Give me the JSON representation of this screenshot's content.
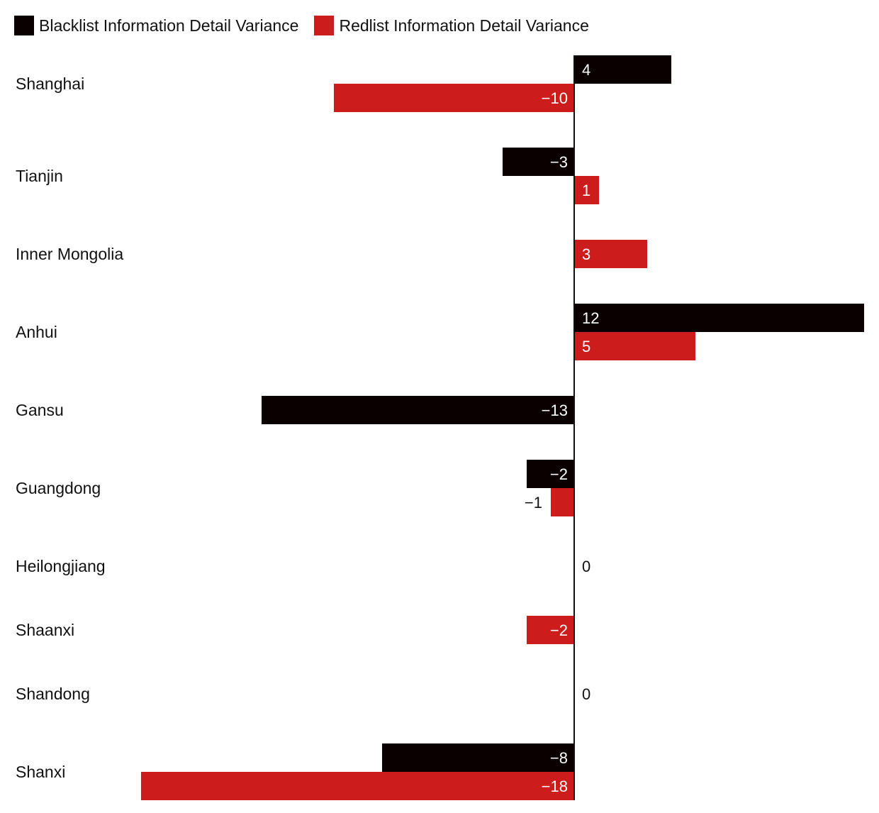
{
  "chart_data": {
    "type": "bar",
    "orientation": "horizontal",
    "categories": [
      "Shanghai",
      "Tianjin",
      "Inner Mongolia",
      "Anhui",
      "Gansu",
      "Guangdong",
      "Heilongjiang",
      "Shaanxi",
      "Shandong",
      "Shanxi"
    ],
    "series": [
      {
        "name": "Blacklist Information Detail Variance",
        "color": "#0a0000",
        "values": [
          4,
          -3,
          null,
          12,
          -13,
          -2,
          0,
          null,
          0,
          -8
        ],
        "labels": [
          "4",
          "−3",
          "",
          "12",
          "−13",
          "−2",
          "0",
          "",
          "0",
          "−8"
        ]
      },
      {
        "name": "Redlist Information Detail Variance",
        "color": "#cc1c1c",
        "values": [
          -10,
          1,
          3,
          5,
          null,
          -1,
          null,
          -2,
          null,
          -18
        ],
        "labels": [
          "−10",
          "1",
          "3",
          "5",
          "",
          "−1",
          "",
          "−2",
          "",
          "−18"
        ]
      }
    ],
    "legend_position": "top-left",
    "grid": false,
    "xlim": [
      -18,
      12
    ]
  }
}
